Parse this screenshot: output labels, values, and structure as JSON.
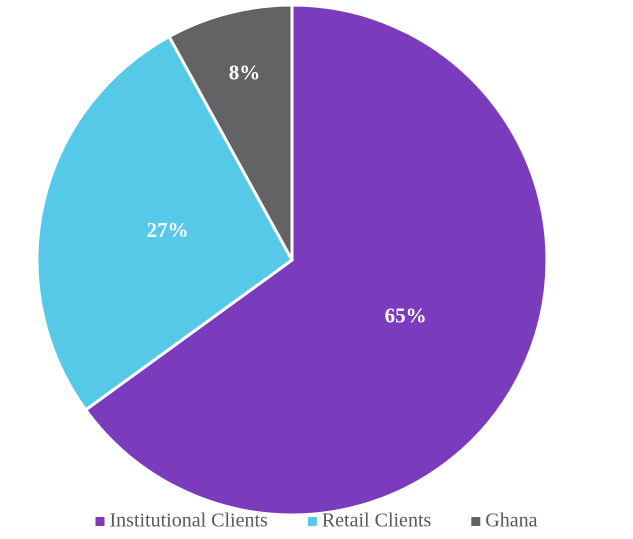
{
  "chart_data": {
    "type": "pie",
    "categories": [
      "Institutional Clients",
      "Retail Clients",
      "Ghana"
    ],
    "values": [
      65,
      27,
      8
    ],
    "value_labels": [
      "65%",
      "27%",
      "8%"
    ],
    "colors": [
      "#7a3bbd",
      "#56c8e8",
      "#636366"
    ],
    "legend": "bottom"
  }
}
